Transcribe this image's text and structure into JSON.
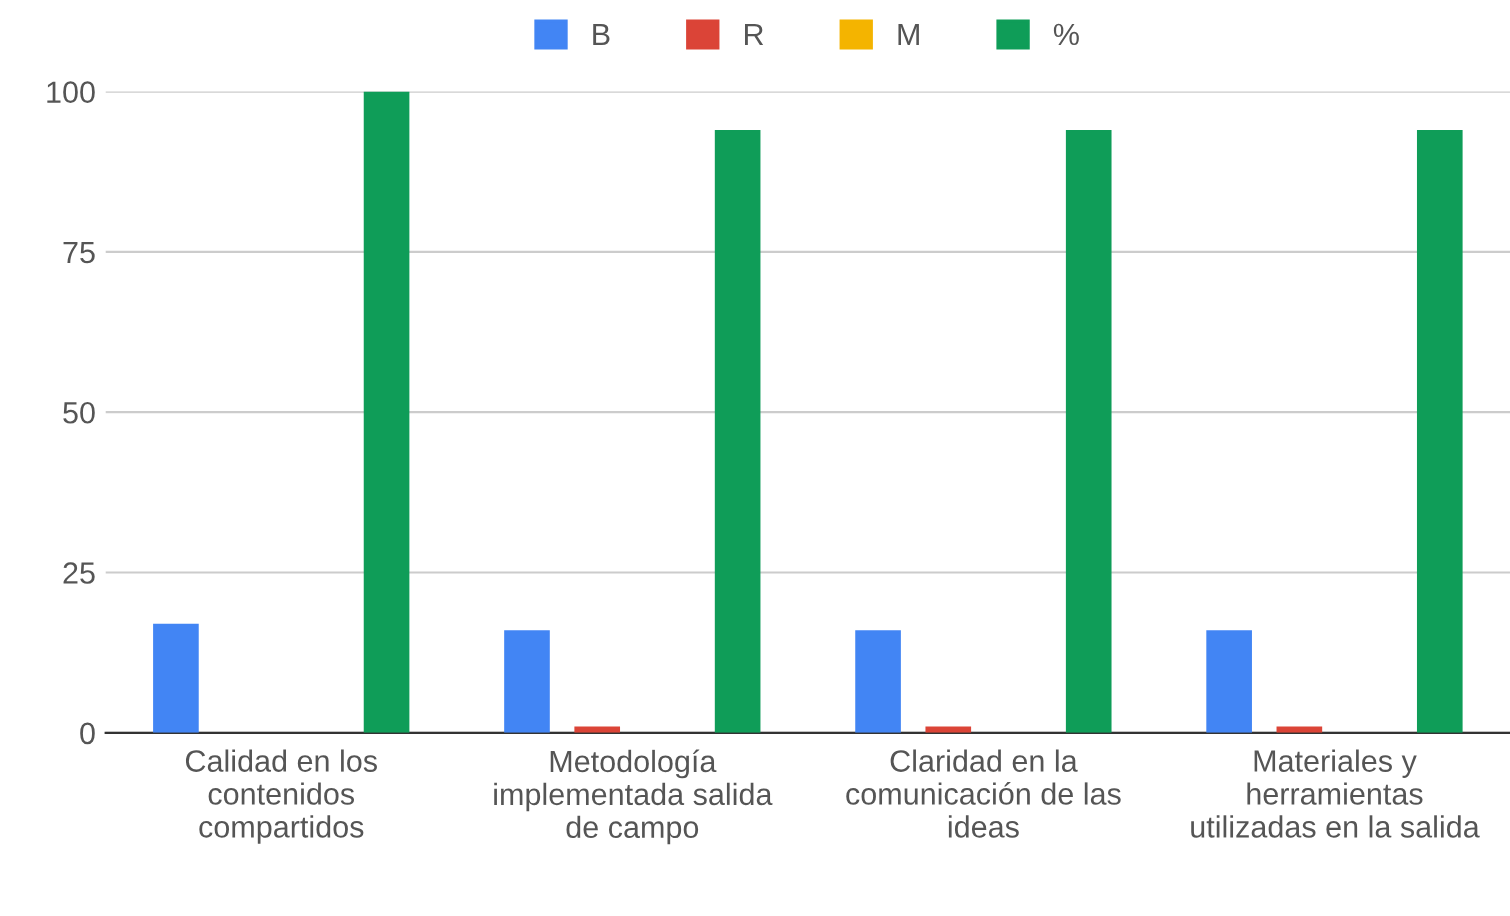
{
  "chart_data": {
    "type": "bar",
    "categories": [
      "Calidad en los\ncontenidos\ncompartidos",
      "Metodología\nimplementada salida\nde campo",
      "Claridad en la\ncomunicación de las\nideas",
      "Materiales y\nherramientas\nutilizadas en la salida"
    ],
    "series": [
      {
        "name": "B",
        "color": "#4285f4",
        "values": [
          17,
          16,
          16,
          16
        ]
      },
      {
        "name": "R",
        "color": "#db4437",
        "values": [
          0,
          1,
          1,
          1
        ]
      },
      {
        "name": "M",
        "color": "#f4b400",
        "values": [
          0,
          0,
          0,
          0
        ]
      },
      {
        "name": "%",
        "color": "#0f9d58",
        "values": [
          100,
          94,
          94,
          94
        ]
      }
    ],
    "ylim": [
      0,
      100
    ],
    "yticks": [
      0,
      25,
      50,
      75,
      100
    ],
    "grid": "y",
    "legend": "top"
  }
}
